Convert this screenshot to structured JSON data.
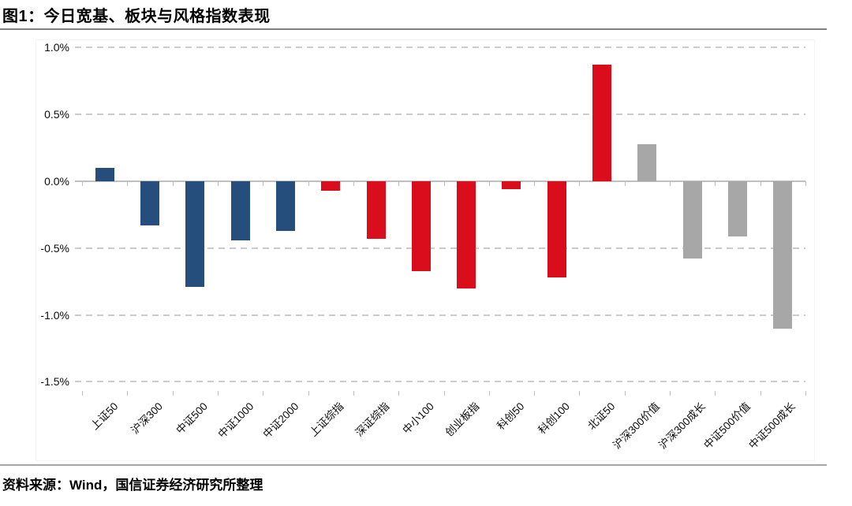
{
  "page": {
    "source_note": "资料来源：Wind，国信证券经济研究所整理"
  },
  "chart_data": {
    "type": "bar",
    "title": "图1：今日宽基、板块与风格指数表现",
    "xlabel": "",
    "ylabel": "",
    "unit": "%",
    "categories": [
      "上证50",
      "沪深300",
      "中证500",
      "中证1000",
      "中证2000",
      "上证综指",
      "深证综指",
      "中小100",
      "创业板指",
      "科创50",
      "科创100",
      "北证50",
      "沪深300价值",
      "沪深300成长",
      "中证500价值",
      "中证500成长"
    ],
    "values": [
      0.1,
      -0.33,
      -0.79,
      -0.44,
      -0.37,
      -0.07,
      -0.43,
      -0.67,
      -0.8,
      -0.06,
      -0.72,
      0.87,
      0.28,
      -0.58,
      -0.41,
      -1.1
    ],
    "bar_colors": [
      "blue",
      "blue",
      "blue",
      "blue",
      "blue",
      "red",
      "red",
      "red",
      "red",
      "red",
      "red",
      "red",
      "gray",
      "gray",
      "gray",
      "gray"
    ],
    "palette": {
      "blue": "#254E7D",
      "red": "#D90D1C",
      "gray": "#A8A7A7"
    },
    "ylim": [
      -1.5,
      1.0
    ],
    "yticks": [
      1.0,
      0.5,
      0.0,
      -0.5,
      -1.0,
      -1.5
    ],
    "ytick_labels": [
      "1.0%",
      "0.5%",
      "0.0%",
      "-0.5%",
      "-1.0%",
      "-1.5%"
    ],
    "grid": "horizontal-dashed",
    "legend": "none"
  }
}
